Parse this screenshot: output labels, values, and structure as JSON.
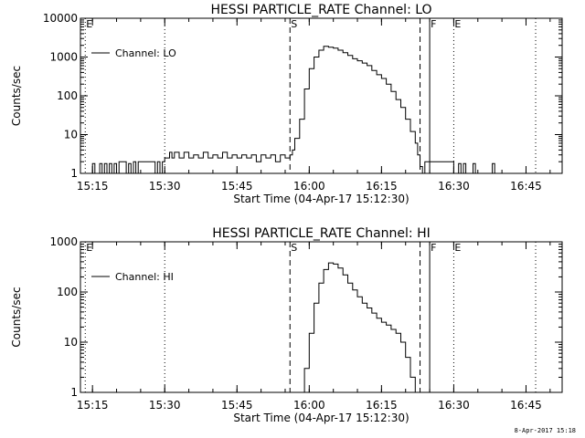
{
  "footer_timestamp": "8-Apr-2017 15:18",
  "chart_data": [
    {
      "type": "line",
      "title": "HESSI PARTICLE_RATE Channel: LO",
      "xlabel": "Start Time (04-Apr-17 15:12:30)",
      "ylabel": "Counts/sec",
      "yscale": "log",
      "xlim": [
        "15:12:30",
        "16:52:30"
      ],
      "ylim": [
        1,
        10000
      ],
      "xticks": [
        "15:15",
        "15:30",
        "15:45",
        "16:00",
        "16:15",
        "16:30",
        "16:45"
      ],
      "yticks": [
        "1",
        "10",
        "100",
        "1000",
        "10000"
      ],
      "legend": {
        "placement": "top-left",
        "entries": [
          "Channel: LO"
        ]
      },
      "markers": [
        {
          "time": "15:13:30",
          "label": "E",
          "style": "dotted"
        },
        {
          "time": "15:30:00",
          "label": "",
          "style": "dotted"
        },
        {
          "time": "15:56:00",
          "label": "S",
          "style": "dashed"
        },
        {
          "time": "16:23:00",
          "label": "",
          "style": "dashed"
        },
        {
          "time": "16:25:00",
          "label": "F",
          "style": "solid"
        },
        {
          "time": "16:30:00",
          "label": "E",
          "style": "dotted"
        },
        {
          "time": "16:47:00",
          "label": "",
          "style": "dotted"
        }
      ],
      "series": [
        {
          "name": "Channel: LO",
          "x": [
            "15:14:00",
            "15:15:00",
            "15:15:30",
            "15:16:30",
            "15:17:00",
            "15:17:30",
            "15:18:00",
            "15:18:30",
            "15:19:00",
            "15:19:30",
            "15:20:00",
            "15:20:30",
            "15:21:30",
            "15:22:00",
            "15:22:30",
            "15:23:00",
            "15:23:30",
            "15:24:00",
            "15:24:30",
            "15:25:00",
            "15:27:30",
            "15:28:00",
            "15:28:30",
            "15:29:00",
            "15:29:30",
            "15:30:00",
            "15:31:00",
            "15:31:30",
            "15:32:00",
            "15:33:00",
            "15:34:00",
            "15:35:00",
            "15:36:00",
            "15:37:00",
            "15:38:00",
            "15:39:00",
            "15:40:00",
            "15:41:00",
            "15:42:00",
            "15:43:00",
            "15:44:00",
            "15:45:00",
            "15:46:00",
            "15:47:00",
            "15:48:00",
            "15:49:00",
            "15:50:00",
            "15:51:00",
            "15:52:00",
            "15:53:00",
            "15:54:00",
            "15:55:00",
            "15:56:00",
            "15:56:30",
            "15:57:00",
            "15:58:00",
            "15:59:00",
            "16:00:00",
            "16:01:00",
            "16:02:00",
            "16:03:00",
            "16:04:00",
            "16:05:00",
            "16:06:00",
            "16:07:00",
            "16:08:00",
            "16:09:00",
            "16:10:00",
            "16:11:00",
            "16:12:00",
            "16:13:00",
            "16:14:00",
            "16:15:00",
            "16:16:00",
            "16:17:00",
            "16:18:00",
            "16:19:00",
            "16:20:00",
            "16:21:00",
            "16:22:00",
            "16:22:30",
            "16:23:00",
            "16:23:30",
            "16:24:00",
            "16:25:00",
            "16:26:00",
            "16:27:00",
            "16:28:00",
            "16:29:00",
            "16:30:00",
            "16:31:00",
            "16:31:30",
            "16:32:00",
            "16:32:30",
            "16:33:00",
            "16:34:00",
            "16:34:30",
            "16:35:00",
            "16:36:00",
            "16:38:00",
            "16:38:30",
            "16:39:00",
            "16:43:00"
          ],
          "y": [
            1,
            1.8,
            1,
            1.8,
            1,
            1.8,
            1,
            1.8,
            1,
            1.8,
            1,
            2,
            2,
            1,
            1.8,
            1,
            2,
            1,
            2,
            2,
            2,
            1,
            2,
            1,
            2,
            2.5,
            3.5,
            2.5,
            3.5,
            2.5,
            3.5,
            2.5,
            3,
            2.5,
            3.5,
            2.5,
            3,
            2.5,
            3.5,
            2.5,
            3,
            2.5,
            3,
            2.5,
            3,
            2,
            3,
            2.5,
            3,
            2,
            3,
            2.5,
            3,
            4,
            8,
            25,
            150,
            500,
            1000,
            1500,
            1900,
            1800,
            1700,
            1500,
            1300,
            1100,
            900,
            800,
            700,
            600,
            450,
            350,
            280,
            200,
            130,
            80,
            50,
            25,
            12,
            6,
            3,
            1.5,
            1,
            2,
            2,
            2,
            2,
            2,
            2,
            1,
            1.8,
            1,
            1.8,
            1,
            1,
            1.8,
            1,
            1,
            1,
            1.8,
            1,
            1,
            1
          ]
        }
      ]
    },
    {
      "type": "line",
      "title": "HESSI PARTICLE_RATE Channel: HI",
      "xlabel": "Start Time (04-Apr-17 15:12:30)",
      "ylabel": "Counts/sec",
      "yscale": "log",
      "xlim": [
        "15:12:30",
        "16:52:30"
      ],
      "ylim": [
        1,
        1000
      ],
      "xticks": [
        "15:15",
        "15:30",
        "15:45",
        "16:00",
        "16:15",
        "16:30",
        "16:45"
      ],
      "yticks": [
        "1",
        "10",
        "100",
        "1000"
      ],
      "legend": {
        "placement": "top-left",
        "entries": [
          "Channel: HI"
        ]
      },
      "markers": [
        {
          "time": "15:13:30",
          "label": "E",
          "style": "dotted"
        },
        {
          "time": "15:30:00",
          "label": "",
          "style": "dotted"
        },
        {
          "time": "15:56:00",
          "label": "S",
          "style": "dashed"
        },
        {
          "time": "16:23:00",
          "label": "",
          "style": "dashed"
        },
        {
          "time": "16:25:00",
          "label": "F",
          "style": "solid"
        },
        {
          "time": "16:30:00",
          "label": "E",
          "style": "dotted"
        },
        {
          "time": "16:47:00",
          "label": "",
          "style": "dotted"
        }
      ],
      "series": [
        {
          "name": "Channel: HI",
          "x": [
            "15:58:00",
            "15:59:00",
            "16:00:00",
            "16:01:00",
            "16:02:00",
            "16:03:00",
            "16:04:00",
            "16:05:00",
            "16:06:00",
            "16:07:00",
            "16:08:00",
            "16:09:00",
            "16:10:00",
            "16:11:00",
            "16:12:00",
            "16:13:00",
            "16:14:00",
            "16:15:00",
            "16:16:00",
            "16:17:00",
            "16:18:00",
            "16:19:00",
            "16:20:00",
            "16:21:00",
            "16:22:00"
          ],
          "y": [
            1,
            3,
            15,
            60,
            150,
            280,
            380,
            360,
            300,
            220,
            150,
            110,
            80,
            60,
            48,
            38,
            30,
            25,
            22,
            18,
            15,
            10,
            5,
            2,
            1
          ]
        }
      ]
    }
  ]
}
